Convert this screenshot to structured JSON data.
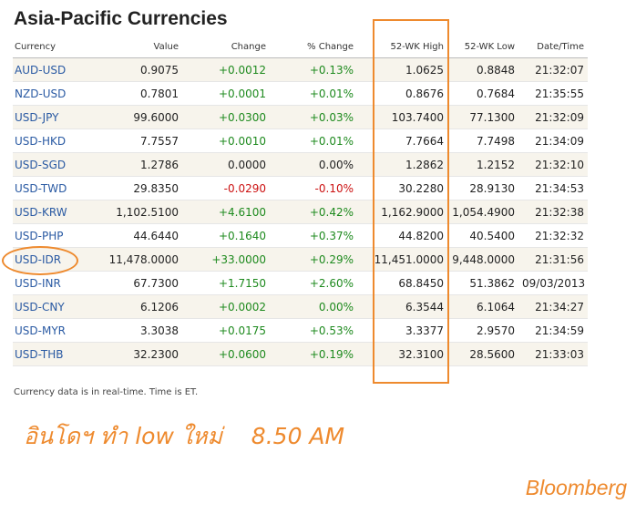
{
  "title": "Asia-Pacific Currencies",
  "columns": {
    "currency": "Currency",
    "value": "Value",
    "change": "Change",
    "pct_change": "% Change",
    "high": "52-WK High",
    "low": "52-WK Low",
    "datetime": "Date/Time"
  },
  "rows": [
    {
      "currency": "AUD-USD",
      "value": "0.9075",
      "change": "+0.0012",
      "pct": "+0.13%",
      "high": "1.0625",
      "low": "0.8848",
      "time": "21:32:07",
      "dir": "pos"
    },
    {
      "currency": "NZD-USD",
      "value": "0.7801",
      "change": "+0.0001",
      "pct": "+0.01%",
      "high": "0.8676",
      "low": "0.7684",
      "time": "21:35:55",
      "dir": "pos"
    },
    {
      "currency": "USD-JPY",
      "value": "99.6000",
      "change": "+0.0300",
      "pct": "+0.03%",
      "high": "103.7400",
      "low": "77.1300",
      "time": "21:32:09",
      "dir": "pos"
    },
    {
      "currency": "USD-HKD",
      "value": "7.7557",
      "change": "+0.0010",
      "pct": "+0.01%",
      "high": "7.7664",
      "low": "7.7498",
      "time": "21:34:09",
      "dir": "pos"
    },
    {
      "currency": "USD-SGD",
      "value": "1.2786",
      "change": "0.0000",
      "pct": "0.00%",
      "high": "1.2862",
      "low": "1.2152",
      "time": "21:32:10",
      "dir": "neu"
    },
    {
      "currency": "USD-TWD",
      "value": "29.8350",
      "change": "-0.0290",
      "pct": "-0.10%",
      "high": "30.2280",
      "low": "28.9130",
      "time": "21:34:53",
      "dir": "neg"
    },
    {
      "currency": "USD-KRW",
      "value": "1,102.5100",
      "change": "+4.6100",
      "pct": "+0.42%",
      "high": "1,162.9000",
      "low": "1,054.4900",
      "time": "21:32:38",
      "dir": "pos"
    },
    {
      "currency": "USD-PHP",
      "value": "44.6440",
      "change": "+0.1640",
      "pct": "+0.37%",
      "high": "44.8200",
      "low": "40.5400",
      "time": "21:32:32",
      "dir": "pos"
    },
    {
      "currency": "USD-IDR",
      "value": "11,478.0000",
      "change": "+33.0000",
      "pct": "+0.29%",
      "high": "11,451.0000",
      "low": "9,448.0000",
      "time": "21:31:56",
      "dir": "pos"
    },
    {
      "currency": "USD-INR",
      "value": "67.7300",
      "change": "+1.7150",
      "pct": "+2.60%",
      "high": "68.8450",
      "low": "51.3862",
      "time": "09/03/2013",
      "dir": "pos"
    },
    {
      "currency": "USD-CNY",
      "value": "6.1206",
      "change": "+0.0002",
      "pct": "0.00%",
      "high": "6.3544",
      "low": "6.1064",
      "time": "21:34:27",
      "dir": "pos"
    },
    {
      "currency": "USD-MYR",
      "value": "3.3038",
      "change": "+0.0175",
      "pct": "+0.53%",
      "high": "3.3377",
      "low": "2.9570",
      "time": "21:34:59",
      "dir": "pos"
    },
    {
      "currency": "USD-THB",
      "value": "32.2300",
      "change": "+0.0600",
      "pct": "+0.19%",
      "high": "32.3100",
      "low": "28.5600",
      "time": "21:33:03",
      "dir": "pos"
    }
  ],
  "footnote": "Currency data is in real-time. Time is ET.",
  "annotation": "อินโดฯ ทำ low ใหม่    8.50 AM",
  "brand": "Bloomberg",
  "colors": {
    "accent_orange": "#ee8a2e",
    "link_blue": "#2a5aa3",
    "positive_green": "#1e8a1e",
    "negative_red": "#cc1111",
    "alt_row": "#f7f4ec"
  }
}
